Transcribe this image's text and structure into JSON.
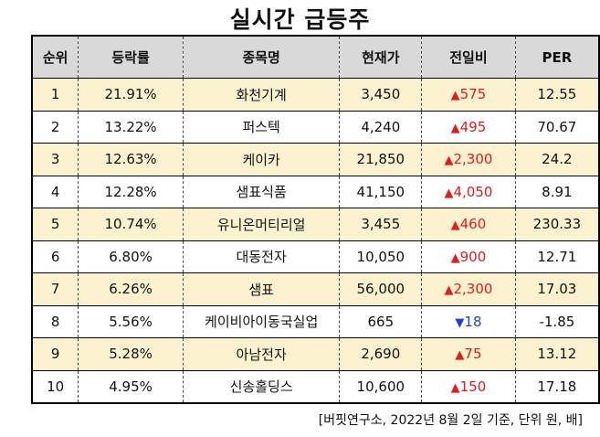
{
  "title": "실시간 급등주",
  "columns": [
    "순위",
    "등락률",
    "종목명",
    "현재가",
    "전일비",
    "PER"
  ],
  "rows": [
    {
      "rank": "1",
      "rate": "21.91%",
      "name": "화천기계",
      "price": "3,450",
      "change": "575",
      "direction": "up",
      "per": "12.55"
    },
    {
      "rank": "2",
      "rate": "13.22%",
      "name": "퍼스텍",
      "price": "4,240",
      "change": "495",
      "direction": "up",
      "per": "70.67"
    },
    {
      "rank": "3",
      "rate": "12.63%",
      "name": "케이카",
      "price": "21,850",
      "change": "2,300",
      "direction": "up",
      "per": "24.2"
    },
    {
      "rank": "4",
      "rate": "12.28%",
      "name": "샘표식품",
      "price": "41,150",
      "change": "4,050",
      "direction": "up",
      "per": "8.91"
    },
    {
      "rank": "5",
      "rate": "10.74%",
      "name": "유니온머티리얼",
      "price": "3,455",
      "change": "460",
      "direction": "up",
      "per": "230.33"
    },
    {
      "rank": "6",
      "rate": "6.80%",
      "name": "대동전자",
      "price": "10,050",
      "change": "900",
      "direction": "up",
      "per": "12.71"
    },
    {
      "rank": "7",
      "rate": "6.26%",
      "name": "샘표",
      "price": "56,000",
      "change": "2,300",
      "direction": "up",
      "per": "17.03"
    },
    {
      "rank": "8",
      "rate": "5.56%",
      "name": "케이비아이동국실업",
      "price": "665",
      "change": "18",
      "direction": "down",
      "per": "-1.85"
    },
    {
      "rank": "9",
      "rate": "5.28%",
      "name": "아남전자",
      "price": "2,690",
      "change": "75",
      "direction": "up",
      "per": "13.12"
    },
    {
      "rank": "10",
      "rate": "4.95%",
      "name": "신송홀딩스",
      "price": "10,600",
      "change": "150",
      "direction": "up",
      "per": "17.18"
    }
  ],
  "footnote": "[버핏연구소, 2022년 8월 2일 기준, 단위 원, 배]",
  "colors": {
    "up": "#e21b1b",
    "down": "#1f3fd1",
    "header_bg": "#d9d9d9",
    "odd_row_bg": "#fdf2cf"
  },
  "icons": {
    "up": "up-triangle-icon",
    "down": "down-triangle-icon"
  }
}
